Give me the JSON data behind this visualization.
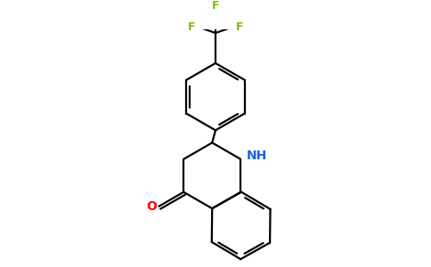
{
  "background_color": "#ffffff",
  "bond_color": "#000000",
  "bond_width": 1.6,
  "F_color": "#7dbe00",
  "N_color": "#2060cc",
  "O_color": "#ff0000",
  "figsize": [
    4.84,
    3.0
  ],
  "dpi": 100,
  "xlim": [
    -2.8,
    2.8
  ],
  "ylim": [
    -3.2,
    3.8
  ]
}
